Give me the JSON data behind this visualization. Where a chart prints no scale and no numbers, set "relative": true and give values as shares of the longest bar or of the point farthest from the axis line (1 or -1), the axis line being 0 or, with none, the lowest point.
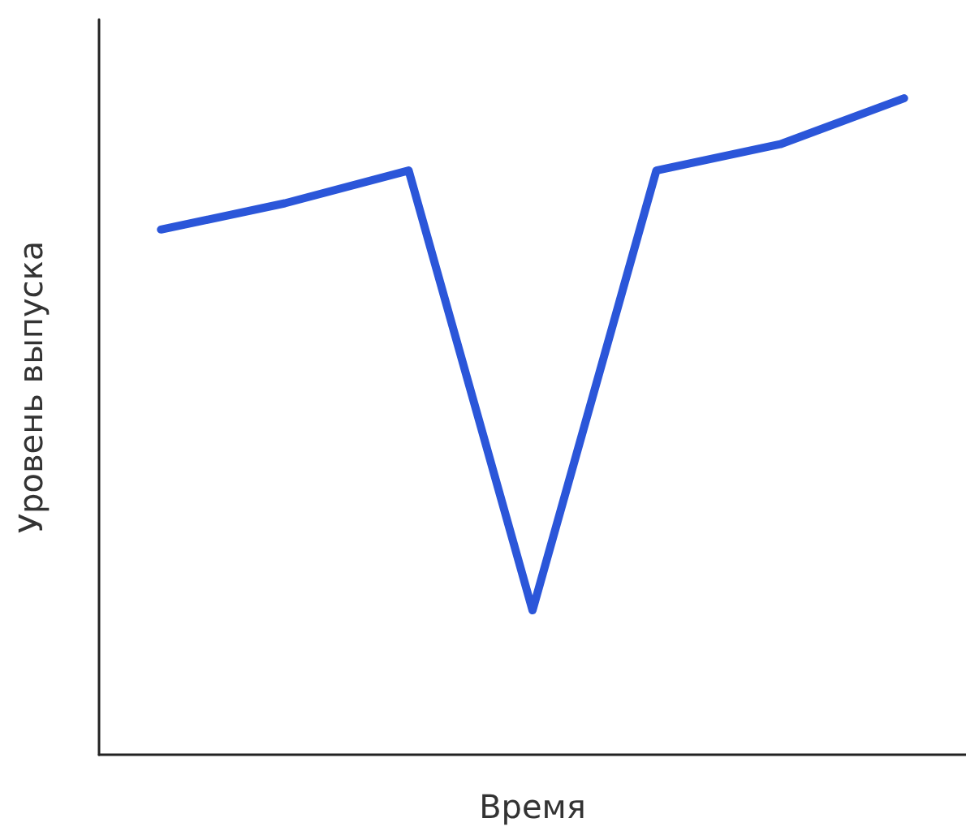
{
  "chart_data": {
    "type": "line",
    "xlabel": "Время",
    "ylabel": "Уровень выпуска",
    "relative": true,
    "categories": [
      null,
      null,
      null,
      null,
      null,
      null,
      null
    ],
    "grid": false,
    "marker": "none",
    "line_style": "solid",
    "series": [
      {
        "color": "#2b56d9",
        "values": [
          0.8,
          0.84,
          0.89,
          0.22,
          0.89,
          0.93,
          1
        ]
      }
    ]
  }
}
